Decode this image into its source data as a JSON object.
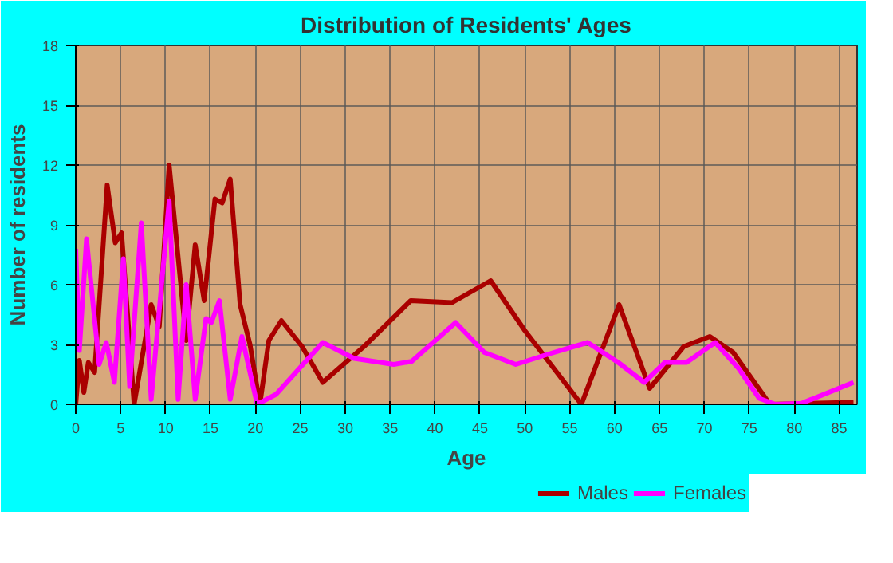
{
  "chart_data": {
    "type": "line",
    "title": "Distribution of Residents' Ages",
    "xlabel": "Age",
    "ylabel": "Number of residents",
    "xlim": [
      0,
      87
    ],
    "xticks": [
      0,
      5,
      10,
      15,
      20,
      25,
      30,
      35,
      40,
      45,
      50,
      55,
      60,
      65,
      70,
      75,
      80,
      85
    ],
    "ylim": [
      0,
      18
    ],
    "yticks": [
      0,
      3,
      6,
      9,
      12,
      15,
      18
    ],
    "grid": true,
    "legend": "bottom",
    "marker": "none",
    "line_style": "solid",
    "series": [
      {
        "name": "Males",
        "color": "#aa0000",
        "x": [
          0,
          0.4,
          0.9,
          1.4,
          2.1,
          3.5,
          4.4,
          5.1,
          6.5,
          8.4,
          9.3,
          10.4,
          12.3,
          13.3,
          14.3,
          15.5,
          16.3,
          17.2,
          18.3,
          19.4,
          20.5,
          21.5,
          22.9,
          25.2,
          27.5,
          32.1,
          37.3,
          41.9,
          46.2,
          50,
          56.3,
          60.5,
          63.9,
          67.7,
          70.6,
          73.2,
          77.3,
          86.6
        ],
        "values": [
          0,
          2.2,
          0.6,
          2.1,
          1.6,
          11,
          8.1,
          8.6,
          0,
          5,
          3.9,
          12,
          3.2,
          8,
          5.2,
          10.3,
          10.1,
          11.3,
          5,
          3,
          0,
          3.2,
          4.2,
          2.9,
          1.1,
          2.9,
          5.2,
          5.1,
          6.2,
          3.7,
          0,
          5,
          0.8,
          2.9,
          3.4,
          2.6,
          0,
          0.1
        ]
      },
      {
        "name": "Females",
        "color": "#ff00ff",
        "x": [
          0,
          0.4,
          1.2,
          2.6,
          3.4,
          4.3,
          5.3,
          6.0,
          7.3,
          8.4,
          10.4,
          11.4,
          12.3,
          13.3,
          14.5,
          15.1,
          16,
          17.2,
          18.5,
          20.2,
          22.3,
          24.6,
          27.5,
          31,
          35.4,
          37.4,
          42.3,
          45.5,
          49,
          52.5,
          57,
          60.4,
          63.3,
          65.6,
          68,
          71.2,
          73.8,
          76.1,
          77.9,
          80.8,
          86.6
        ],
        "values": [
          7.8,
          2.7,
          8.3,
          2,
          3.1,
          1.1,
          7.3,
          0.9,
          9.1,
          0.25,
          10.2,
          0.25,
          6,
          0.25,
          4.3,
          4.1,
          5.2,
          0.25,
          3.4,
          0,
          0.5,
          1.65,
          3.1,
          2.3,
          2,
          2.15,
          4.1,
          2.6,
          2,
          2.5,
          3.1,
          2.1,
          1.1,
          2.1,
          2.1,
          3.1,
          1.8,
          0.3,
          0,
          0.05,
          1.1
        ]
      }
    ]
  }
}
